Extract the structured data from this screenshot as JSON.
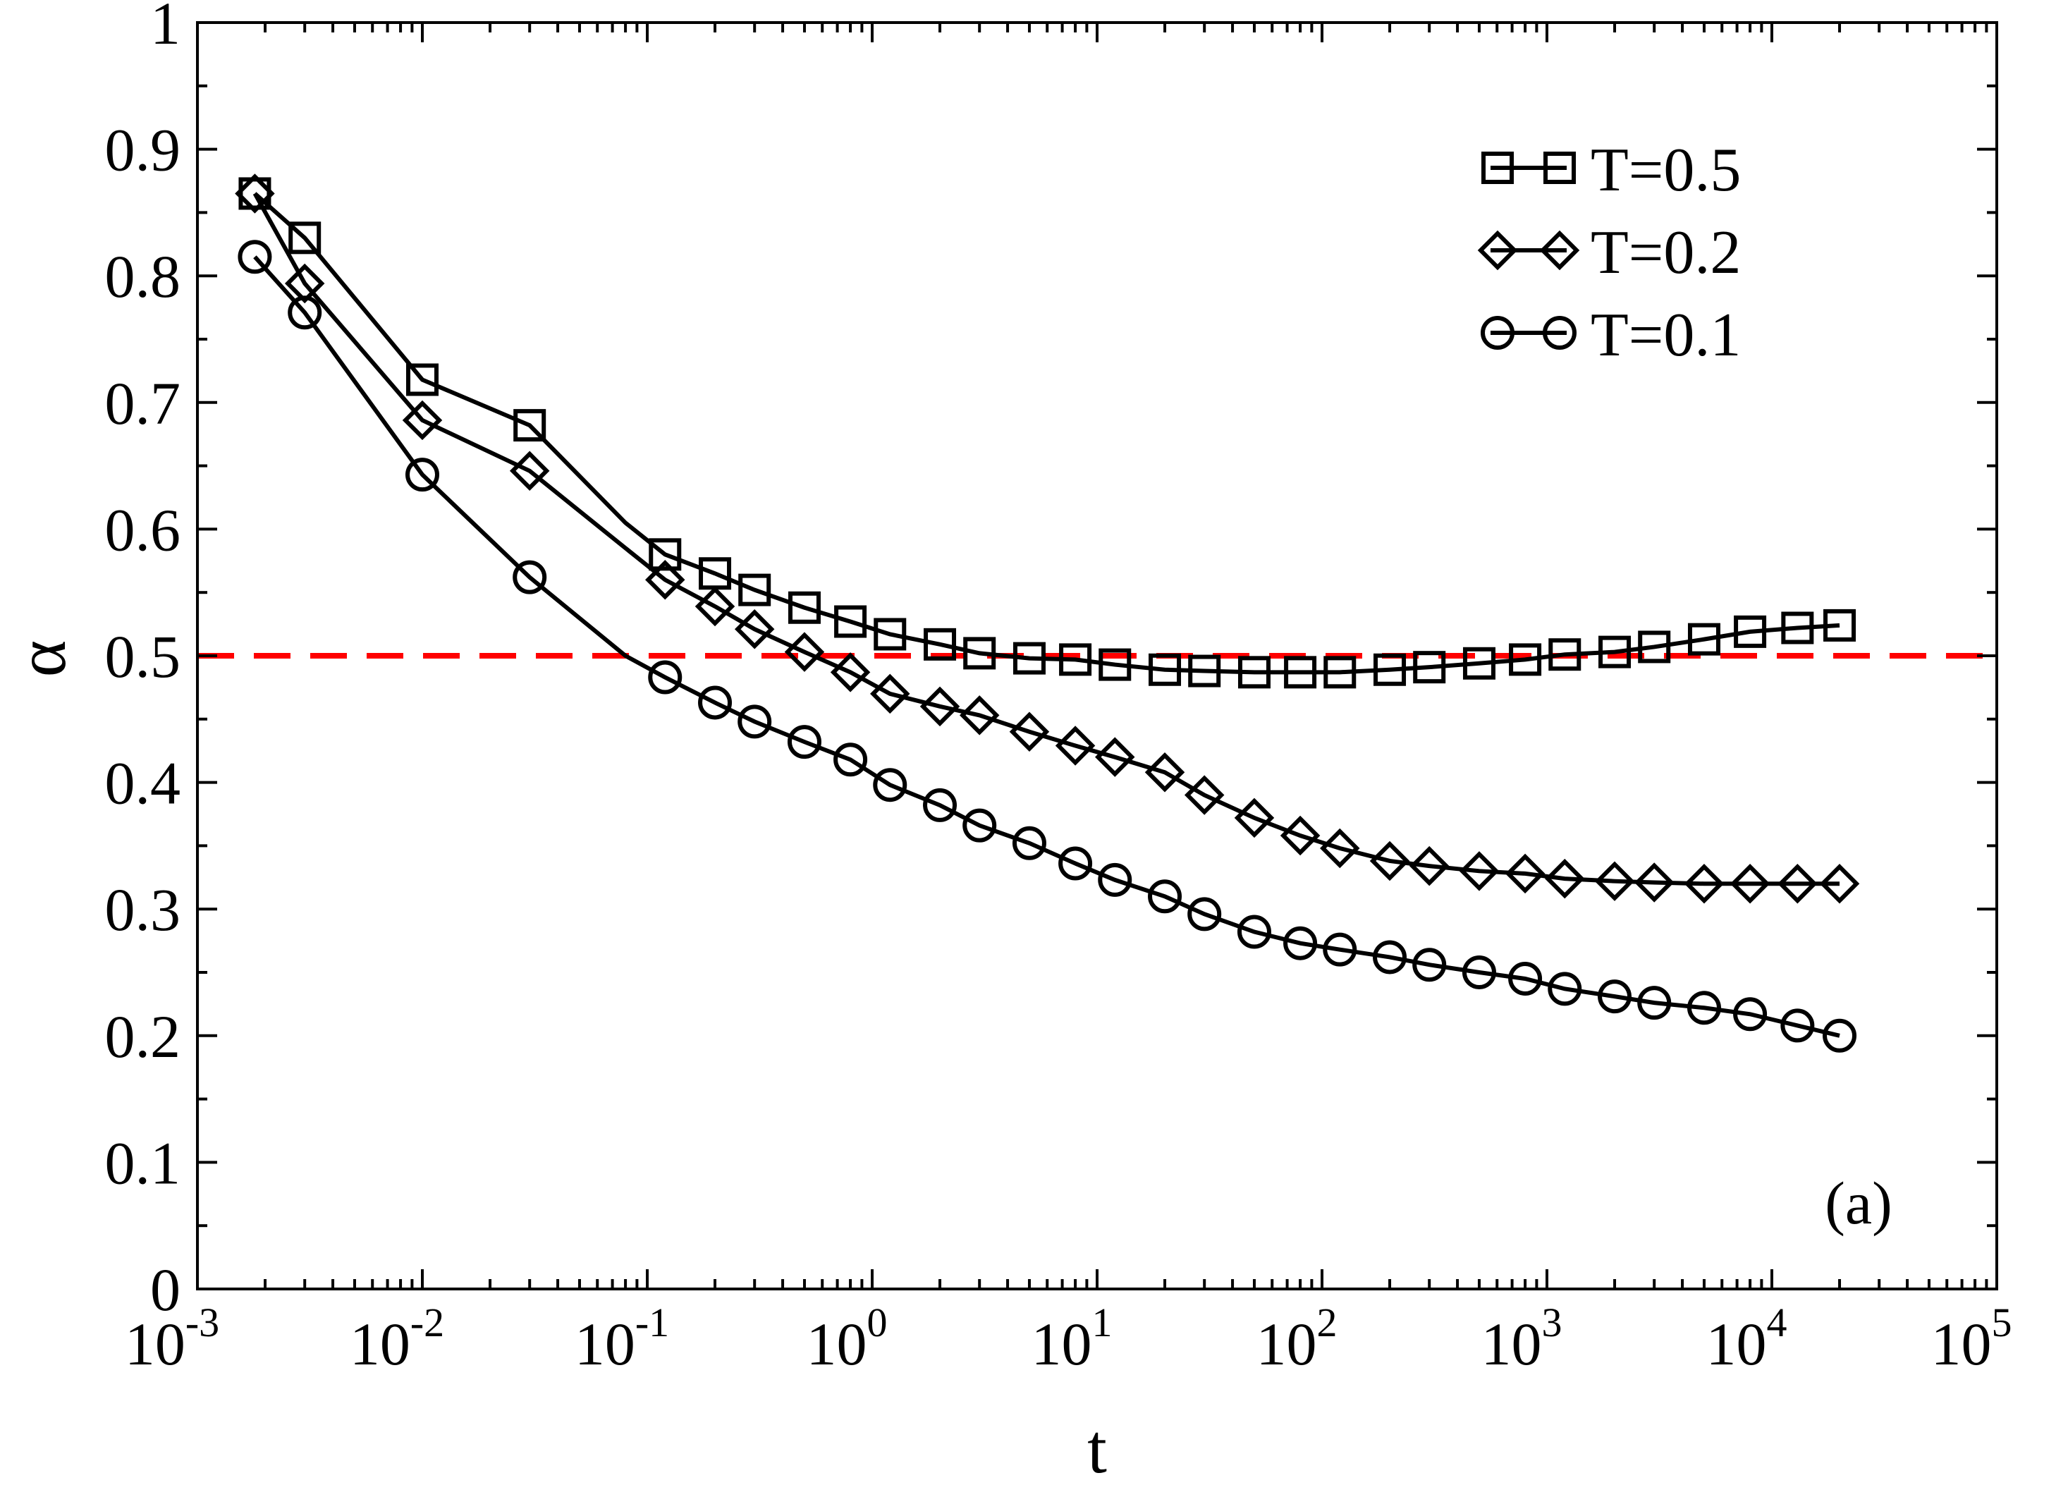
{
  "chart_data": {
    "type": "line",
    "xlabel": "t",
    "ylabel": "α",
    "xscale": "log",
    "xlim": [
      0.001,
      100000
    ],
    "ylim": [
      0,
      1
    ],
    "x_ticks": [
      {
        "value": 0.001,
        "base": "10",
        "exp": "-3"
      },
      {
        "value": 0.01,
        "base": "10",
        "exp": "-2"
      },
      {
        "value": 0.1,
        "base": "10",
        "exp": "-1"
      },
      {
        "value": 1,
        "base": "10",
        "exp": "0"
      },
      {
        "value": 10,
        "base": "10",
        "exp": "1"
      },
      {
        "value": 100,
        "base": "10",
        "exp": "2"
      },
      {
        "value": 1000,
        "base": "10",
        "exp": "3"
      },
      {
        "value": 10000,
        "base": "10",
        "exp": "4"
      },
      {
        "value": 100000,
        "base": "10",
        "exp": "5"
      }
    ],
    "y_ticks": [
      {
        "value": 0,
        "label": "0"
      },
      {
        "value": 0.1,
        "label": "0.1"
      },
      {
        "value": 0.2,
        "label": "0.2"
      },
      {
        "value": 0.3,
        "label": "0.3"
      },
      {
        "value": 0.4,
        "label": "0.4"
      },
      {
        "value": 0.5,
        "label": "0.5"
      },
      {
        "value": 0.6,
        "label": "0.6"
      },
      {
        "value": 0.7,
        "label": "0.7"
      },
      {
        "value": 0.8,
        "label": "0.8"
      },
      {
        "value": 0.9,
        "label": "0.9"
      },
      {
        "value": 1,
        "label": "1"
      }
    ],
    "reference_line": {
      "y": 0.5,
      "style": "dashed",
      "color": "#ff0000"
    },
    "grid": false,
    "legend_position": "top-right",
    "annotation": "(a)",
    "series": [
      {
        "name": "T=0.5",
        "marker": "square",
        "points": [
          [
            0.0018,
            0.865
          ],
          [
            0.003,
            0.83
          ],
          [
            0.01,
            0.718
          ],
          [
            0.03,
            0.682
          ],
          [
            0.08,
            0.605
          ],
          [
            0.12,
            0.58
          ],
          [
            0.2,
            0.565
          ],
          [
            0.3,
            0.552
          ],
          [
            0.5,
            0.538
          ],
          [
            0.8,
            0.527
          ],
          [
            1.2,
            0.517
          ],
          [
            2,
            0.509
          ],
          [
            3,
            0.502
          ],
          [
            5,
            0.498
          ],
          [
            8,
            0.497
          ],
          [
            12,
            0.493
          ],
          [
            20,
            0.489
          ],
          [
            30,
            0.488
          ],
          [
            50,
            0.487
          ],
          [
            80,
            0.487
          ],
          [
            120,
            0.487
          ],
          [
            200,
            0.489
          ],
          [
            300,
            0.491
          ],
          [
            500,
            0.494
          ],
          [
            800,
            0.497
          ],
          [
            1200,
            0.501
          ],
          [
            2000,
            0.503
          ],
          [
            3000,
            0.507
          ],
          [
            5000,
            0.513
          ],
          [
            8000,
            0.519
          ],
          [
            13000,
            0.522
          ],
          [
            20000,
            0.524
          ]
        ]
      },
      {
        "name": "T=0.2",
        "marker": "diamond",
        "points": [
          [
            0.0018,
            0.865
          ],
          [
            0.003,
            0.794
          ],
          [
            0.01,
            0.686
          ],
          [
            0.03,
            0.646
          ],
          [
            0.08,
            0.585
          ],
          [
            0.12,
            0.56
          ],
          [
            0.2,
            0.539
          ],
          [
            0.3,
            0.521
          ],
          [
            0.5,
            0.503
          ],
          [
            0.8,
            0.487
          ],
          [
            1.2,
            0.47
          ],
          [
            2,
            0.46
          ],
          [
            3,
            0.453
          ],
          [
            5,
            0.44
          ],
          [
            8,
            0.429
          ],
          [
            12,
            0.42
          ],
          [
            20,
            0.408
          ],
          [
            30,
            0.39
          ],
          [
            50,
            0.372
          ],
          [
            80,
            0.358
          ],
          [
            120,
            0.348
          ],
          [
            200,
            0.338
          ],
          [
            300,
            0.334
          ],
          [
            500,
            0.33
          ],
          [
            800,
            0.328
          ],
          [
            1200,
            0.324
          ],
          [
            2000,
            0.322
          ],
          [
            3000,
            0.321
          ],
          [
            5000,
            0.32
          ],
          [
            8000,
            0.32
          ],
          [
            13000,
            0.32
          ],
          [
            20000,
            0.32
          ]
        ]
      },
      {
        "name": "T=0.1",
        "marker": "circle",
        "points": [
          [
            0.0018,
            0.815
          ],
          [
            0.003,
            0.771
          ],
          [
            0.01,
            0.643
          ],
          [
            0.03,
            0.562
          ],
          [
            0.08,
            0.5
          ],
          [
            0.12,
            0.483
          ],
          [
            0.2,
            0.463
          ],
          [
            0.3,
            0.448
          ],
          [
            0.5,
            0.432
          ],
          [
            0.8,
            0.418
          ],
          [
            1.2,
            0.398
          ],
          [
            2,
            0.382
          ],
          [
            3,
            0.366
          ],
          [
            5,
            0.352
          ],
          [
            8,
            0.336
          ],
          [
            12,
            0.323
          ],
          [
            20,
            0.31
          ],
          [
            30,
            0.296
          ],
          [
            50,
            0.282
          ],
          [
            80,
            0.273
          ],
          [
            120,
            0.268
          ],
          [
            200,
            0.262
          ],
          [
            300,
            0.256
          ],
          [
            500,
            0.25
          ],
          [
            800,
            0.245
          ],
          [
            1200,
            0.237
          ],
          [
            2000,
            0.231
          ],
          [
            3000,
            0.226
          ],
          [
            5000,
            0.222
          ],
          [
            8000,
            0.217
          ],
          [
            13000,
            0.208
          ],
          [
            20000,
            0.2
          ]
        ]
      }
    ]
  }
}
